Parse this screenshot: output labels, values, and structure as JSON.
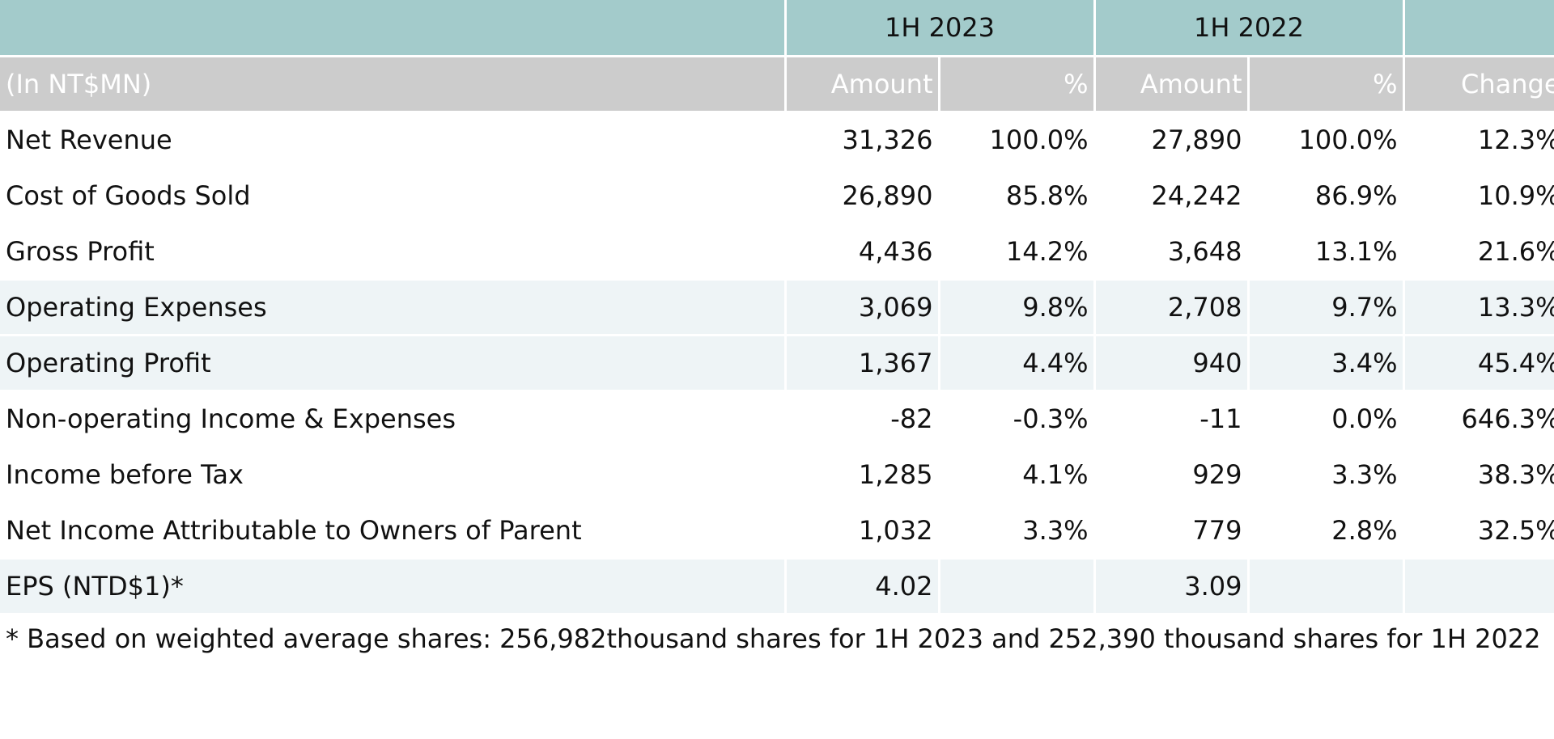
{
  "table": {
    "period_headers": [
      "1H 2023",
      "1H 2022"
    ],
    "unit_label": "(In NT$MN)",
    "column_headers": [
      "Amount",
      "%",
      "Amount",
      "%",
      "Change"
    ],
    "rows": [
      {
        "label": "Net Revenue",
        "values": [
          "31,326",
          "100.0%",
          "27,890",
          "100.0%",
          "12.3%"
        ],
        "shaded": false
      },
      {
        "label": "Cost of Goods Sold",
        "values": [
          "26,890",
          "85.8%",
          "24,242",
          "86.9%",
          "10.9%"
        ],
        "shaded": false
      },
      {
        "label": "Gross Profit",
        "values": [
          "4,436",
          "14.2%",
          "3,648",
          "13.1%",
          "21.6%"
        ],
        "shaded": false
      },
      {
        "label": "Operating Expenses",
        "values": [
          "3,069",
          "9.8%",
          "2,708",
          "9.7%",
          "13.3%"
        ],
        "shaded": true
      },
      {
        "label": "Operating Profit",
        "values": [
          "1,367",
          "4.4%",
          "940",
          "3.4%",
          "45.4%"
        ],
        "shaded": true
      },
      {
        "label": "Non-operating Income & Expenses",
        "values": [
          "-82",
          "-0.3%",
          "-11",
          "0.0%",
          "646.3%"
        ],
        "shaded": false
      },
      {
        "label": "Income before Tax",
        "values": [
          "1,285",
          "4.1%",
          "929",
          "3.3%",
          "38.3%"
        ],
        "shaded": false
      },
      {
        "label": "Net Income Attributable to Owners of Parent",
        "values": [
          "1,032",
          "3.3%",
          "779",
          "2.8%",
          "32.5%"
        ],
        "shaded": false
      },
      {
        "label": "EPS (NTD$1)*",
        "values": [
          "4.02",
          "",
          "3.09",
          "",
          ""
        ],
        "shaded": true
      }
    ]
  },
  "footnote": "* Based on weighted average shares: 256,982thousand shares for 1H 2023 and 252,390 thousand shares for 1H 2022",
  "colors": {
    "period_header_bg": "#a3cbcb",
    "column_header_bg": "#cccccc",
    "shaded_row_bg": "#eef4f6"
  }
}
